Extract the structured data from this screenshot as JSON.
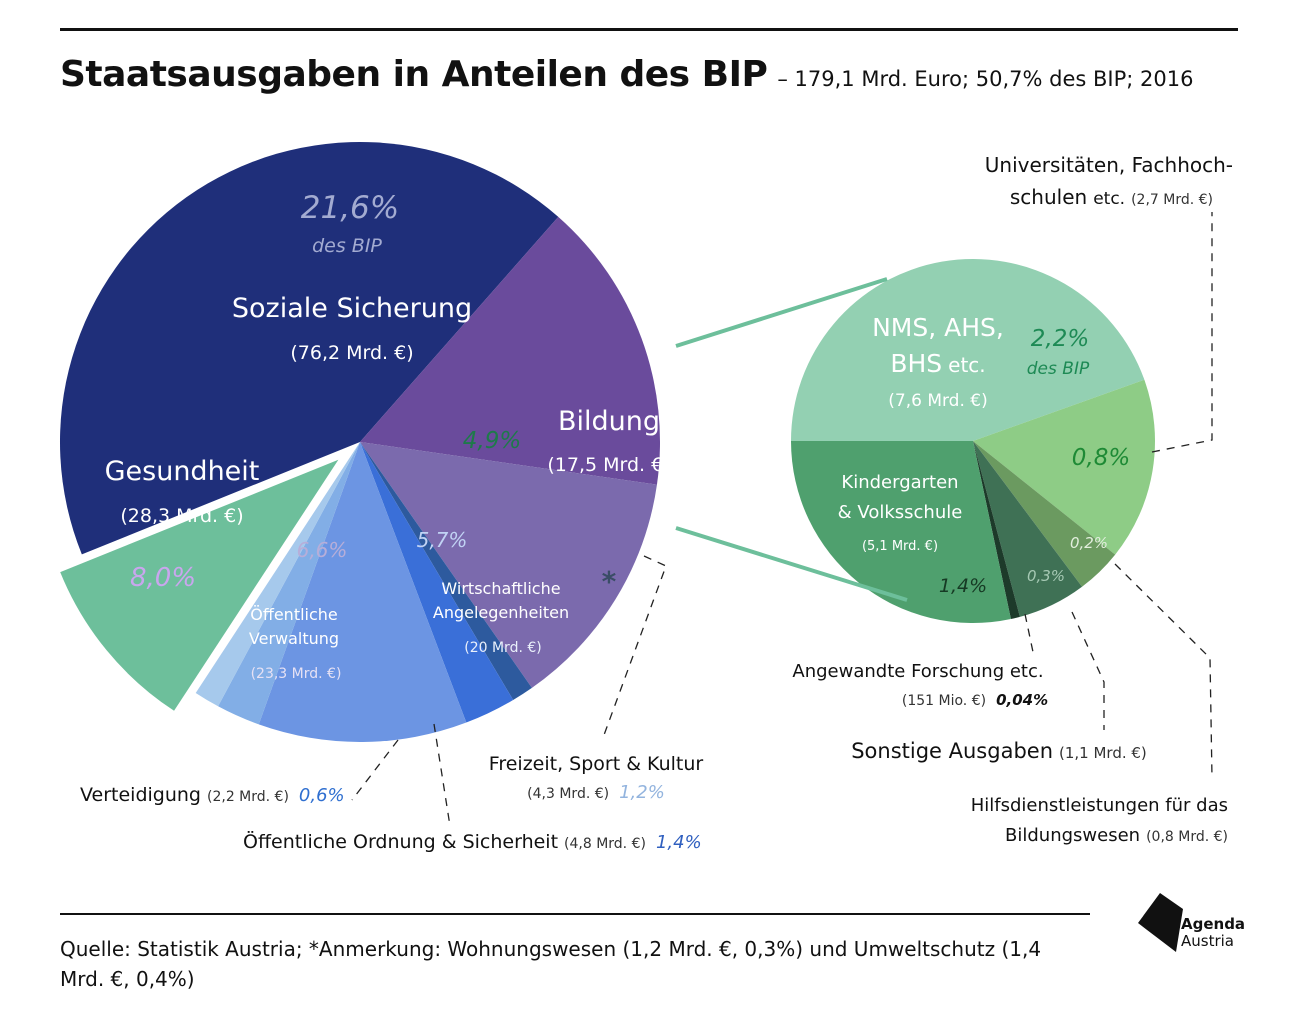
{
  "title": "Staatsausgaben in Anteilen des BIP",
  "subtitle": "– 179,1 Mrd. Euro; 50,7% des BIP; 2016",
  "source": "Quelle: Statistik Austria; *Anmerkung: Wohnungswesen (1,2 Mrd. €, 0,3%) und Umweltschutz (1,4 Mrd. €, 0,4%)",
  "logo": {
    "line1": "Agenda",
    "line2": "Austria"
  },
  "colors": {
    "soziale": "#1f2f7a",
    "gesundheit": "#6a4b9c",
    "verwaltung": "#7b6aad",
    "verteidigung": "#2d5a9e",
    "ordnung": "#3a6fd8",
    "wirtschaft": "#6c95e3",
    "freizeit": "#82aee6",
    "sonstige_haupt": "#a6c9ec",
    "bildung": "#6dbf9b",
    "nms": "#93d0b2",
    "uni": "#8ecc86",
    "hilfs": "#6b9a60",
    "sonstige_bildung": "#3f7155",
    "forschung": "#1d3a2a",
    "kindergarten": "#4fa06e"
  },
  "chart_data": [
    {
      "type": "pie",
      "name": "Staatsausgaben",
      "total_bip_pct": 50.7,
      "slices": [
        {
          "label": "Soziale Sicherung",
          "value_mrd": "(76,2 Mrd. €)",
          "pct": 21.6,
          "pct_text": "21,6%",
          "pct_sub": "des BIP"
        },
        {
          "label": "Gesundheit",
          "value_mrd": "(28,3 Mrd. €)",
          "pct": 8.0,
          "pct_text": "8,0%"
        },
        {
          "label": "Öffentliche Verwaltung",
          "label_line1": "Öffentliche",
          "label_line2": "Verwaltung",
          "value_mrd": "(23,3 Mrd. €)",
          "pct": 6.6,
          "pct_text": "6,6%"
        },
        {
          "label": "Verteidigung",
          "value_mrd": "(2,2 Mrd. €)",
          "pct": 0.6,
          "pct_text": "0,6%"
        },
        {
          "label": "Öffentliche Ordnung & Sicherheit",
          "value_mrd": "(4,8 Mrd. €)",
          "pct": 1.4,
          "pct_text": "1,4%"
        },
        {
          "label": "Wirtschaftliche Angelegenheiten",
          "label_line1": "Wirtschaftliche",
          "label_line2": "Angelegenheiten",
          "value_mrd": "(20 Mrd. €)",
          "pct": 5.7,
          "pct_text": "5,7%"
        },
        {
          "label": "Freizeit, Sport & Kultur",
          "value_mrd": "(4,3 Mrd. €)",
          "pct": 1.2,
          "pct_text": "1,2%"
        },
        {
          "label": "*",
          "pct": 0.7
        },
        {
          "label": "Bildung",
          "value_mrd": "(17,5 Mrd. €)",
          "pct": 4.9,
          "pct_text": "4,9%"
        }
      ]
    },
    {
      "type": "pie",
      "name": "Bildung",
      "slices": [
        {
          "label": "NMS, AHS, BHS etc.",
          "label_line1": "NMS, AHS,",
          "label_line2": "BHS",
          "label_suffix": "etc.",
          "value_mrd": "(7,6 Mrd. €)",
          "pct": 2.2,
          "pct_text": "2,2%",
          "pct_sub": "des BIP"
        },
        {
          "label": "Universitäten, Fachhochschulen etc.",
          "label_line1": "Universitäten, Fachhoch-",
          "label_line2": "schulen",
          "label_suffix": "etc.",
          "value_mrd": "(2,7 Mrd. €)",
          "pct": 0.8,
          "pct_text": "0,8%"
        },
        {
          "label": "Hilfsdienstleistungen für das Bildungswesen",
          "label_line1": "Hilfsdienstleistungen für das",
          "label_line2": "Bildungswesen",
          "value_mrd": "(0,8 Mrd. €)",
          "pct": 0.2,
          "pct_text": "0,2%"
        },
        {
          "label": "Sonstige Ausgaben",
          "value_mrd": "(1,1 Mrd. €)",
          "pct": 0.3,
          "pct_text": "0,3%"
        },
        {
          "label": "Angewandte Forschung etc.",
          "value_mrd": "(151 Mio. €)",
          "pct": 0.04,
          "pct_text": "0,04%"
        },
        {
          "label": "Kindergarten & Volksschule",
          "label_line1": "Kindergarten",
          "label_line2": "& Volksschule",
          "value_mrd": "(5,1 Mrd. €)",
          "pct": 1.4,
          "pct_text": "1,4%"
        }
      ]
    }
  ]
}
